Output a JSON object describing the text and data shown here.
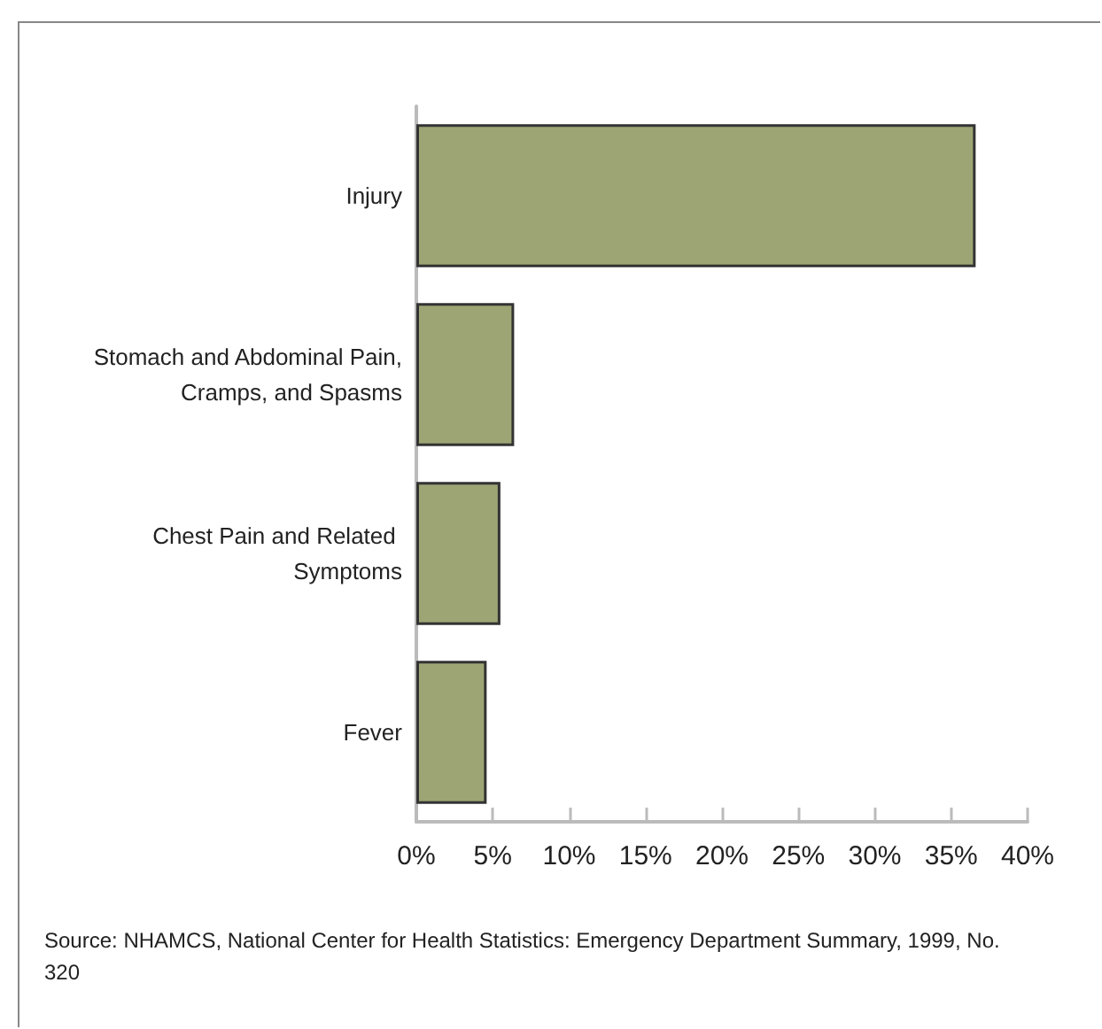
{
  "chart_data": {
    "type": "bar",
    "orientation": "horizontal",
    "categories": [
      "Injury",
      "Stomach and Abdominal Pain, Cramps, and Spasms",
      "Chest Pain and Related Symptoms",
      "Fever"
    ],
    "values": [
      36.6,
      6.4,
      5.5,
      4.6
    ],
    "color": "#9da575",
    "xlim": [
      0,
      40
    ],
    "xticks": [
      {
        "value": 0,
        "label": "0%"
      },
      {
        "value": 5,
        "label": "5%"
      },
      {
        "value": 10,
        "label": "10%"
      },
      {
        "value": 15,
        "label": "15%"
      },
      {
        "value": 20,
        "label": "20%"
      },
      {
        "value": 25,
        "label": "25%"
      },
      {
        "value": 30,
        "label": "30%"
      },
      {
        "value": 35,
        "label": "35%"
      },
      {
        "value": 40,
        "label": "40%"
      }
    ],
    "grid": false,
    "annotations": [
      "Source: NHAMCS, National Center for Health Statistics: Emergency Department Summary, 1999, No. 320"
    ]
  }
}
